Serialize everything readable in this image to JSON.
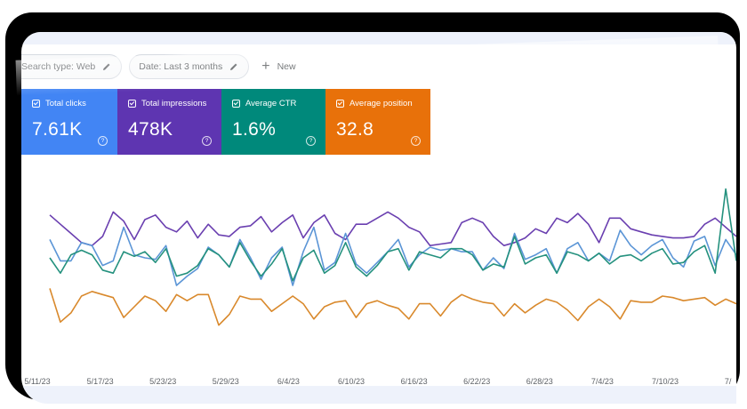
{
  "toolbar": {
    "search_type_label": "Search type: Web",
    "date_label": "Date: Last 3 months",
    "new_label": "New"
  },
  "metrics": [
    {
      "label": "Total clicks",
      "value": "7.61K",
      "color": "#4285f4"
    },
    {
      "label": "Total impressions",
      "value": "478K",
      "color": "#5e35b1"
    },
    {
      "label": "Average CTR",
      "value": "1.6%",
      "color": "#00897b"
    },
    {
      "label": "Average position",
      "value": "32.8",
      "color": "#e8710a"
    }
  ],
  "colors": {
    "clicks": "#5b95d6",
    "impressions": "#6a3fb0",
    "ctr": "#24917e",
    "position": "#d9892c"
  },
  "chart_data": {
    "type": "line",
    "x_tick_labels": [
      "5/11/23",
      "5/17/23",
      "5/23/23",
      "5/29/23",
      "6/4/23",
      "6/10/23",
      "6/16/23",
      "6/22/23",
      "6/28/23",
      "7/4/23",
      "7/10/23",
      "7/"
    ],
    "points_per_series": 66,
    "series": [
      {
        "key": "impressions",
        "values": [
          78,
          72,
          66,
          60,
          58,
          64,
          80,
          74,
          62,
          75,
          78,
          70,
          67,
          74,
          63,
          72,
          65,
          64,
          70,
          71,
          77,
          67,
          73,
          78,
          63,
          73,
          78,
          66,
          62,
          72,
          72,
          76,
          80,
          76,
          70,
          67,
          58,
          59,
          60,
          73,
          76,
          73,
          64,
          58,
          60,
          63,
          69,
          66,
          76,
          73,
          79,
          72,
          60,
          76,
          76,
          69,
          67,
          65,
          64,
          63,
          63,
          64,
          72,
          76,
          70,
          64
        ]
      },
      {
        "key": "clicks",
        "values": [
          62,
          48,
          48,
          60,
          58,
          45,
          48,
          70,
          52,
          50,
          49,
          58,
          32,
          38,
          43,
          57,
          52,
          44,
          62,
          50,
          36,
          50,
          57,
          32,
          54,
          70,
          42,
          47,
          66,
          46,
          40,
          47,
          54,
          62,
          44,
          52,
          57,
          55,
          56,
          54,
          54,
          42,
          50,
          43,
          66,
          49,
          52,
          56,
          40,
          56,
          60,
          48,
          53,
          48,
          68,
          58,
          52,
          58,
          62,
          50,
          44,
          61,
          64,
          45,
          62,
          52
        ]
      },
      {
        "key": "ctr",
        "values": [
          50,
          40,
          52,
          55,
          52,
          42,
          40,
          54,
          51,
          54,
          47,
          56,
          38,
          40,
          45,
          56,
          52,
          44,
          60,
          48,
          38,
          46,
          56,
          35,
          50,
          55,
          40,
          45,
          60,
          44,
          38,
          45,
          54,
          56,
          42,
          54,
          52,
          50,
          56,
          56,
          52,
          42,
          46,
          44,
          64,
          46,
          50,
          52,
          40,
          54,
          52,
          48,
          53,
          46,
          51,
          52,
          48,
          53,
          56,
          46,
          47,
          54,
          58,
          40,
          95,
          48
        ]
      },
      {
        "key": "position",
        "values": [
          30,
          8,
          14,
          25,
          28,
          26,
          24,
          11,
          18,
          25,
          22,
          15,
          26,
          22,
          26,
          26,
          6,
          13,
          25,
          23,
          23,
          15,
          20,
          25,
          20,
          10,
          18,
          21,
          22,
          11,
          20,
          22,
          19,
          17,
          10,
          20,
          20,
          12,
          21,
          26,
          23,
          21,
          20,
          12,
          20,
          14,
          19,
          23,
          21,
          16,
          9,
          18,
          23,
          18,
          10,
          22,
          21,
          21,
          25,
          24,
          22,
          23,
          24,
          19,
          23,
          20
        ]
      }
    ]
  }
}
